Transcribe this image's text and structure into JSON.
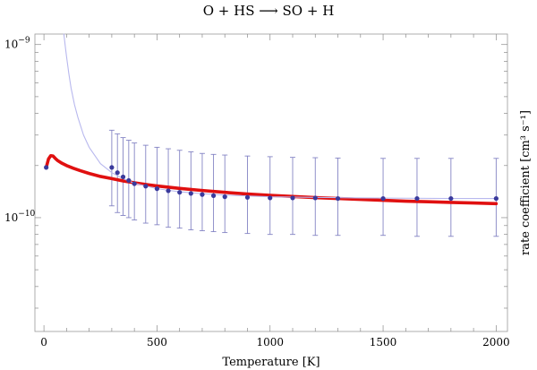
{
  "chart_data": {
    "type": "scatter",
    "title": "O + HS ⟶ SO + H",
    "xlabel": "Temperature [K]",
    "ylabel": "rate coefficient  [cm³ s⁻¹]",
    "xlim": [
      -40,
      2050
    ],
    "ylim": [
      2.2e-11,
      1.15e-09
    ],
    "yscale": "log",
    "grid": false,
    "x_ticks": [
      {
        "value": 0,
        "label": "0"
      },
      {
        "value": 500,
        "label": "500"
      },
      {
        "value": 1000,
        "label": "1000"
      },
      {
        "value": 1500,
        "label": "1500"
      },
      {
        "value": 2000,
        "label": "2000"
      }
    ],
    "y_ticks": [
      {
        "value": 1e-09,
        "mant": "10",
        "exp": "−9"
      },
      {
        "value": 1e-10,
        "mant": "10",
        "exp": "−10"
      }
    ],
    "series": [
      {
        "kind": "points_with_errorbars",
        "color": "#3a3a9c",
        "x": [
          10,
          300,
          325,
          350,
          375,
          400,
          450,
          500,
          550,
          600,
          650,
          700,
          750,
          800,
          900,
          1000,
          1100,
          1200,
          1300,
          1500,
          1650,
          1800,
          2000
        ],
        "y": [
          1.95e-10,
          1.95e-10,
          1.82e-10,
          1.72e-10,
          1.64e-10,
          1.57e-10,
          1.52e-10,
          1.47e-10,
          1.43e-10,
          1.4e-10,
          1.38e-10,
          1.36e-10,
          1.34e-10,
          1.32e-10,
          1.31e-10,
          1.3e-10,
          1.3e-10,
          1.3e-10,
          1.29e-10,
          1.29e-10,
          1.29e-10,
          1.29e-10,
          1.29e-10
        ],
        "y_low": [
          null,
          1.17e-10,
          1.07e-10,
          1.03e-10,
          1e-10,
          9.7e-11,
          9.3e-11,
          9.1e-11,
          8.8e-11,
          8.7e-11,
          8.5e-11,
          8.4e-11,
          8.3e-11,
          8.2e-11,
          8.1e-11,
          8e-11,
          8e-11,
          7.9e-11,
          7.9e-11,
          7.9e-11,
          7.8e-11,
          7.8e-11,
          7.8e-11
        ],
        "y_high": [
          null,
          3.2e-10,
          3.05e-10,
          2.9e-10,
          2.8e-10,
          2.7e-10,
          2.62e-10,
          2.55e-10,
          2.5e-10,
          2.45e-10,
          2.4e-10,
          2.35e-10,
          2.32e-10,
          2.3e-10,
          2.27e-10,
          2.25e-10,
          2.23e-10,
          2.22e-10,
          2.21e-10,
          2.2e-10,
          2.2e-10,
          2.2e-10,
          2.2e-10
        ]
      },
      {
        "kind": "line",
        "color": "#e01010",
        "x": [
          10,
          20,
          30,
          40,
          50,
          60,
          80,
          100,
          130,
          160,
          200,
          250,
          300,
          350,
          400,
          450,
          500,
          600,
          700,
          800,
          900,
          1000,
          1100,
          1200,
          1300,
          1400,
          1500,
          1600,
          1700,
          1800,
          1900,
          2000
        ],
        "y": [
          1.95e-10,
          2.18e-10,
          2.28e-10,
          2.27e-10,
          2.2e-10,
          2.14e-10,
          2.06e-10,
          2e-10,
          1.93e-10,
          1.87e-10,
          1.8e-10,
          1.73e-10,
          1.68e-10,
          1.63e-10,
          1.59e-10,
          1.555e-10,
          1.525e-10,
          1.475e-10,
          1.435e-10,
          1.4e-10,
          1.37e-10,
          1.345e-10,
          1.325e-10,
          1.305e-10,
          1.29e-10,
          1.275e-10,
          1.26e-10,
          1.245e-10,
          1.235e-10,
          1.225e-10,
          1.215e-10,
          1.205e-10
        ]
      },
      {
        "kind": "line",
        "color": "#b8b8ee",
        "x": [
          88,
          95,
          100,
          110,
          120,
          135,
          150,
          175,
          200,
          250,
          300,
          350,
          400,
          500,
          600,
          700,
          800,
          1000,
          1200,
          1400,
          1600,
          1800,
          2000
        ],
        "y": [
          1.15e-09,
          9.6e-10,
          8.5e-10,
          6.8e-10,
          5.6e-10,
          4.5e-10,
          3.8e-10,
          3e-10,
          2.55e-10,
          2.05e-10,
          1.82e-10,
          1.68e-10,
          1.58e-10,
          1.47e-10,
          1.41e-10,
          1.375e-10,
          1.35e-10,
          1.32e-10,
          1.31e-10,
          1.3e-10,
          1.295e-10,
          1.29e-10,
          1.29e-10
        ]
      }
    ]
  }
}
